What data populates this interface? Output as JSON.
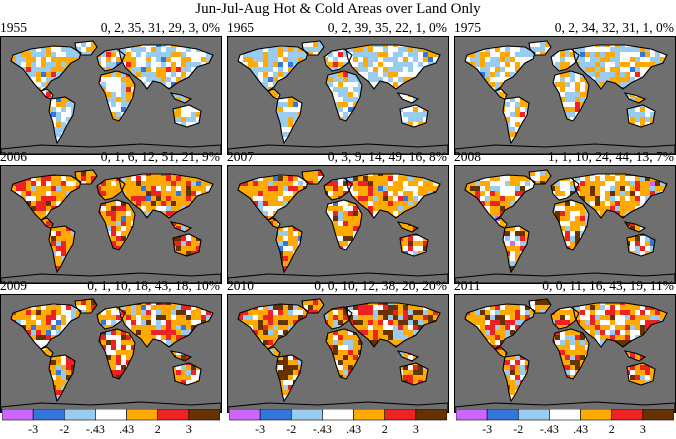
{
  "title": "Jun-Jul-Aug Hot & Cold Areas over Land Only",
  "colors": {
    "ocean": "#6f6f6f",
    "land_white": "#ffffff",
    "bins": [
      "#cc66ff",
      "#3377dd",
      "#99ccf0",
      "#ffffff",
      "#ffaa00",
      "#ee2222",
      "#663300"
    ]
  },
  "panels": [
    {
      "year": "1955",
      "stats": "0, 2, 35, 31, 29, 3, 0%"
    },
    {
      "year": "1965",
      "stats": "0, 2, 39, 35, 22, 1, 0%"
    },
    {
      "year": "1975",
      "stats": "0, 2, 34, 32, 31, 1, 0%"
    },
    {
      "year": "2006",
      "stats": "0, 1, 6, 12, 51, 21, 9%"
    },
    {
      "year": "2007",
      "stats": "0, 3, 9, 14, 49, 16, 8%"
    },
    {
      "year": "2008",
      "stats": "1, 1, 10, 24, 44, 13, 7%"
    },
    {
      "year": "2009",
      "stats": "0, 1, 10, 18, 43, 18, 10%"
    },
    {
      "year": "2010",
      "stats": "0, 0, 10, 12, 38, 20, 20%"
    },
    {
      "year": "2011",
      "stats": "0, 0, 11, 16, 43, 19, 11%"
    }
  ],
  "colorbar_ticks": [
    "-3",
    "-2",
    "-.43",
    ".43",
    "2",
    "3"
  ]
}
